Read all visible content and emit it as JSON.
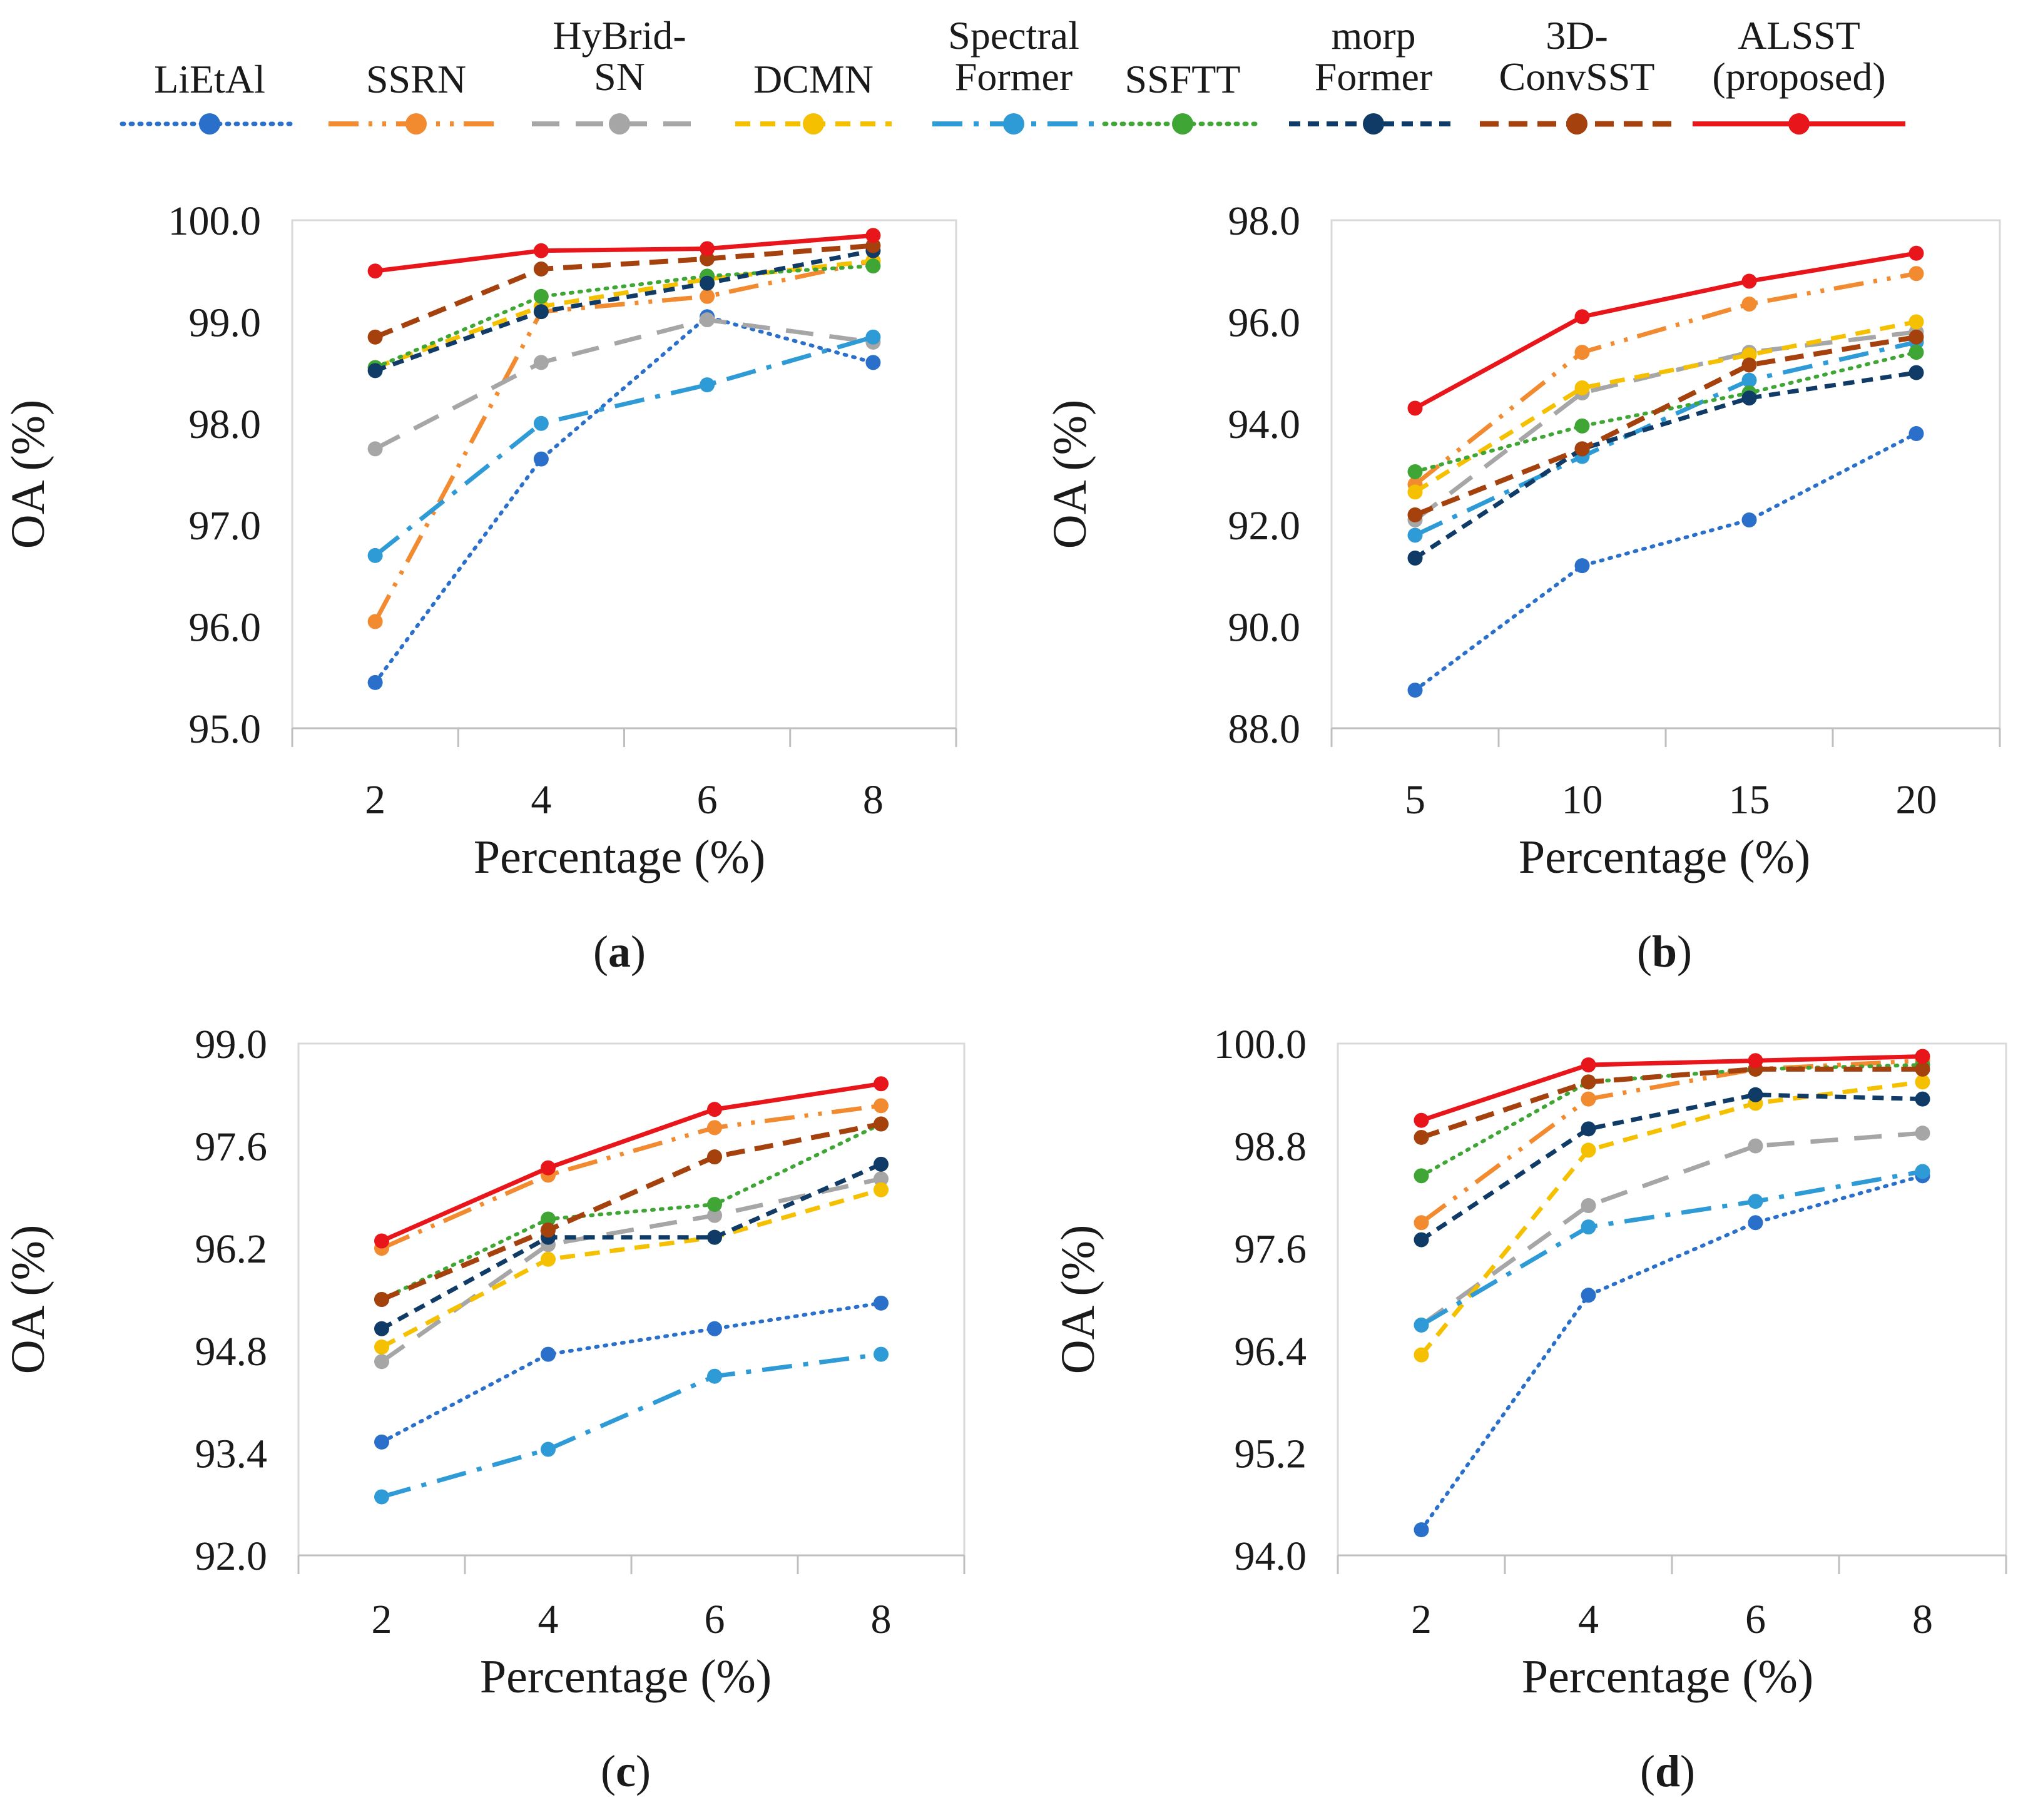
{
  "figure": {
    "legend": [
      {
        "lines": [
          "LiEtAl"
        ]
      },
      {
        "lines": [
          "SSRN"
        ]
      },
      {
        "lines": [
          "HyBrid-",
          "SN"
        ]
      },
      {
        "lines": [
          "DCMN"
        ]
      },
      {
        "lines": [
          "Spectral",
          "Former"
        ]
      },
      {
        "lines": [
          "SSFTT"
        ]
      },
      {
        "lines": [
          "morp",
          "Former"
        ]
      },
      {
        "lines": [
          "3D-",
          "ConvSST"
        ]
      },
      {
        "lines": [
          "ALSST",
          "(proposed)"
        ]
      }
    ]
  },
  "chart_data": [
    {
      "type": "line",
      "panel_label": "a",
      "xlabel": "Percentage (%)",
      "ylabel": "OA (%)",
      "categories": [
        "2",
        "4",
        "6",
        "8"
      ],
      "yticks": [
        "95.0",
        "96.0",
        "97.0",
        "98.0",
        "99.0",
        "100.0"
      ],
      "ylim": [
        95.0,
        100.0
      ],
      "series": [
        {
          "name": "LiEtAl",
          "color": "#2a6fc9",
          "values": [
            95.45,
            97.65,
            99.05,
            98.6
          ]
        },
        {
          "name": "SSRN",
          "color": "#f28a30",
          "values": [
            96.05,
            99.1,
            99.25,
            99.6
          ]
        },
        {
          "name": "HyBrid-SN",
          "color": "#a6a6a6",
          "values": [
            97.75,
            98.6,
            99.02,
            98.8
          ]
        },
        {
          "name": "DCMN",
          "color": "#f5c000",
          "values": [
            98.55,
            99.15,
            99.42,
            99.6
          ]
        },
        {
          "name": "Spectral Former",
          "color": "#2e9bd6",
          "values": [
            96.7,
            98.0,
            98.38,
            98.85
          ]
        },
        {
          "name": "SSFTT",
          "color": "#3fa535",
          "values": [
            98.55,
            99.25,
            99.45,
            99.55
          ]
        },
        {
          "name": "morp Former",
          "color": "#0f3b66",
          "values": [
            98.52,
            99.1,
            99.38,
            99.7
          ]
        },
        {
          "name": "3D-ConvSST",
          "color": "#a4410c",
          "values": [
            98.85,
            99.52,
            99.62,
            99.75
          ]
        },
        {
          "name": "ALSST (proposed)",
          "color": "#e8151b",
          "values": [
            99.5,
            99.7,
            99.72,
            99.85
          ]
        }
      ]
    },
    {
      "type": "line",
      "panel_label": "b",
      "xlabel": "Percentage (%)",
      "ylabel": "OA (%)",
      "categories": [
        "5",
        "10",
        "15",
        "20"
      ],
      "yticks": [
        "88.0",
        "90.0",
        "92.0",
        "94.0",
        "96.0",
        "98.0"
      ],
      "ylim": [
        88.0,
        98.0
      ],
      "series": [
        {
          "name": "LiEtAl",
          "color": "#2a6fc9",
          "values": [
            88.75,
            91.2,
            92.1,
            93.8
          ]
        },
        {
          "name": "SSRN",
          "color": "#f28a30",
          "values": [
            92.8,
            95.4,
            96.35,
            96.95
          ]
        },
        {
          "name": "HyBrid-SN",
          "color": "#a6a6a6",
          "values": [
            92.1,
            94.6,
            95.4,
            95.8
          ]
        },
        {
          "name": "DCMN",
          "color": "#f5c000",
          "values": [
            92.65,
            94.7,
            95.35,
            96.0
          ]
        },
        {
          "name": "Spectral Former",
          "color": "#2e9bd6",
          "values": [
            91.8,
            93.35,
            94.85,
            95.6
          ]
        },
        {
          "name": "SSFTT",
          "color": "#3fa535",
          "values": [
            93.05,
            93.95,
            94.6,
            95.4
          ]
        },
        {
          "name": "morp Former",
          "color": "#0f3b66",
          "values": [
            91.35,
            93.5,
            94.5,
            95.0
          ]
        },
        {
          "name": "3D-ConvSST",
          "color": "#a4410c",
          "values": [
            92.2,
            93.5,
            95.15,
            95.7
          ]
        },
        {
          "name": "ALSST (proposed)",
          "color": "#e8151b",
          "values": [
            94.3,
            96.1,
            96.8,
            97.35
          ]
        }
      ]
    },
    {
      "type": "line",
      "panel_label": "c",
      "xlabel": "Percentage (%)",
      "ylabel": "OA (%)",
      "categories": [
        "2",
        "4",
        "6",
        "8"
      ],
      "yticks": [
        "92.0",
        "93.4",
        "94.8",
        "96.2",
        "97.6",
        "99.0"
      ],
      "ylim": [
        92.0,
        99.0
      ],
      "series": [
        {
          "name": "LiEtAl",
          "color": "#2a6fc9",
          "values": [
            93.55,
            94.75,
            95.1,
            95.45
          ]
        },
        {
          "name": "SSRN",
          "color": "#f28a30",
          "values": [
            96.2,
            97.2,
            97.85,
            98.15
          ]
        },
        {
          "name": "HyBrid-SN",
          "color": "#a6a6a6",
          "values": [
            94.65,
            96.25,
            96.65,
            97.15
          ]
        },
        {
          "name": "DCMN",
          "color": "#f5c000",
          "values": [
            94.85,
            96.05,
            96.35,
            97.0
          ]
        },
        {
          "name": "Spectral Former",
          "color": "#2e9bd6",
          "values": [
            92.8,
            93.45,
            94.45,
            94.75
          ]
        },
        {
          "name": "SSFTT",
          "color": "#3fa535",
          "values": [
            95.5,
            96.6,
            96.8,
            97.9
          ]
        },
        {
          "name": "morp Former",
          "color": "#0f3b66",
          "values": [
            95.1,
            96.35,
            96.35,
            97.35
          ]
        },
        {
          "name": "3D-ConvSST",
          "color": "#a4410c",
          "values": [
            95.5,
            96.45,
            97.45,
            97.9
          ]
        },
        {
          "name": "ALSST (proposed)",
          "color": "#e8151b",
          "values": [
            96.3,
            97.3,
            98.1,
            98.45
          ]
        }
      ]
    },
    {
      "type": "line",
      "panel_label": "d",
      "xlabel": "Percentage (%)",
      "ylabel": "OA (%)",
      "categories": [
        "2",
        "4",
        "6",
        "8"
      ],
      "yticks": [
        "94.0",
        "95.2",
        "96.4",
        "97.6",
        "98.8",
        "100.0"
      ],
      "ylim": [
        94.0,
        100.0
      ],
      "series": [
        {
          "name": "LiEtAl",
          "color": "#2a6fc9",
          "values": [
            94.3,
            97.05,
            97.9,
            98.45
          ]
        },
        {
          "name": "SSRN",
          "color": "#f28a30",
          "values": [
            97.9,
            99.35,
            99.7,
            99.8
          ]
        },
        {
          "name": "HyBrid-SN",
          "color": "#a6a6a6",
          "values": [
            96.7,
            98.1,
            98.8,
            98.95
          ]
        },
        {
          "name": "DCMN",
          "color": "#f5c000",
          "values": [
            96.35,
            98.75,
            99.3,
            99.55
          ]
        },
        {
          "name": "Spectral Former",
          "color": "#2e9bd6",
          "values": [
            96.7,
            97.85,
            98.15,
            98.5
          ]
        },
        {
          "name": "SSFTT",
          "color": "#3fa535",
          "values": [
            98.45,
            99.55,
            99.7,
            99.75
          ]
        },
        {
          "name": "morp Former",
          "color": "#0f3b66",
          "values": [
            97.7,
            99.0,
            99.4,
            99.35
          ]
        },
        {
          "name": "3D-ConvSST",
          "color": "#a4410c",
          "values": [
            98.9,
            99.55,
            99.7,
            99.7
          ]
        },
        {
          "name": "ALSST (proposed)",
          "color": "#e8151b",
          "values": [
            99.1,
            99.75,
            99.8,
            99.85
          ]
        }
      ]
    }
  ]
}
